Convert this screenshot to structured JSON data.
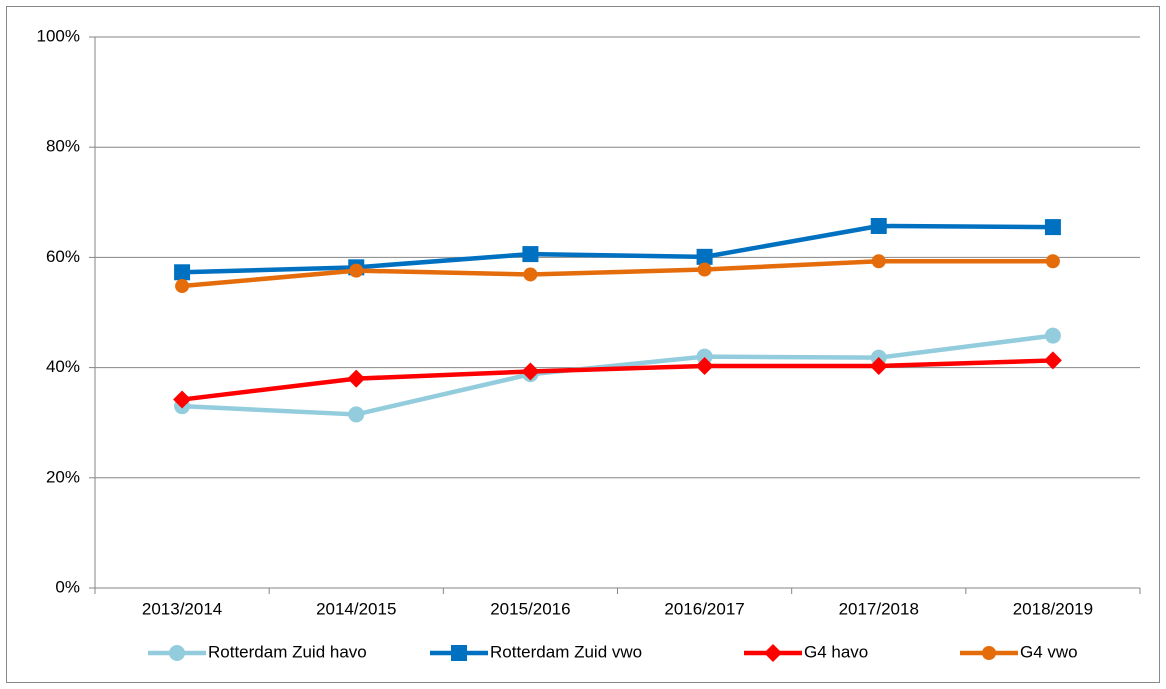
{
  "chart_data": {
    "type": "line",
    "categories": [
      "2013/2014",
      "2014/2015",
      "2015/2016",
      "2016/2017",
      "2017/2018",
      "2018/2019"
    ],
    "series": [
      {
        "name": "Rotterdam Zuid havo",
        "color": "#93cddd",
        "marker": "circle",
        "values": [
          33.0,
          31.5,
          38.8,
          42.0,
          41.8,
          45.8
        ]
      },
      {
        "name": "Rotterdam Zuid vwo",
        "color": "#0070c0",
        "marker": "square",
        "values": [
          57.3,
          58.2,
          60.6,
          60.1,
          65.7,
          65.5
        ]
      },
      {
        "name": "G4 havo",
        "color": "#ff0000",
        "marker": "diamond",
        "values": [
          34.2,
          38.0,
          39.3,
          40.3,
          40.3,
          41.3
        ]
      },
      {
        "name": "G4 vwo",
        "color": "#e46c0a",
        "marker": "circle",
        "values": [
          54.8,
          57.6,
          56.9,
          57.8,
          59.3,
          59.3
        ]
      }
    ],
    "ylim": [
      0,
      100
    ],
    "yticks": [
      {
        "value": 0,
        "label": "0%"
      },
      {
        "value": 20,
        "label": "20%"
      },
      {
        "value": 40,
        "label": "40%"
      },
      {
        "value": 60,
        "label": "60%"
      },
      {
        "value": 80,
        "label": "80%"
      },
      {
        "value": 100,
        "label": "100%"
      }
    ],
    "grid": true,
    "legend": "bottom"
  }
}
